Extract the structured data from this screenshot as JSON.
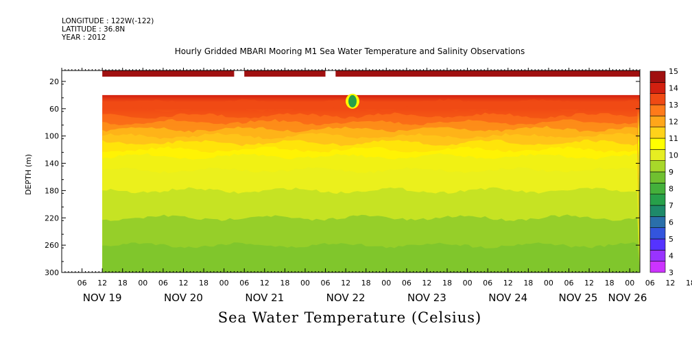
{
  "header": {
    "longitude": "LONGITUDE : 122W(-122)",
    "latitude": "LATITUDE : 36.8N",
    "year": "YEAR : 2012"
  },
  "chart_data": {
    "type": "heatmap",
    "title": "Hourly Gridded MBARI Mooring M1 Sea Water Temperature and Salinity Observations",
    "xlabel": "Sea Water Temperature (Celsius)",
    "ylabel": "DEPTH (m)",
    "y_ticks": [
      20,
      60,
      100,
      140,
      180,
      220,
      260,
      300
    ],
    "ylim": [
      300,
      4
    ],
    "x_hour_labels": [
      "06",
      "12",
      "18",
      "00",
      "06",
      "12",
      "18",
      "00",
      "06",
      "12",
      "18",
      "00",
      "06",
      "12",
      "18",
      "00",
      "06",
      "12",
      "18",
      "00",
      "06",
      "12",
      "18",
      "00",
      "06",
      "12",
      "18",
      "00",
      "06",
      "12",
      "18",
      "00"
    ],
    "x_day_labels": [
      "NOV 19",
      "NOV 20",
      "NOV 21",
      "NOV 22",
      "NOV 23",
      "NOV 24",
      "NOV 25",
      "NOV 26"
    ],
    "xlim": [
      "2012-11-19T00:00",
      "2012-11-26T03:00"
    ],
    "data_start": "2012-11-19T12:00",
    "colorbar": {
      "levels": [
        3,
        4,
        5,
        6,
        7,
        8,
        9,
        10,
        11,
        12,
        13,
        14,
        15
      ],
      "colors": [
        "#cc33ff",
        "#9933ff",
        "#5533ff",
        "#3355dd",
        "#2a6faa",
        "#1e8a6a",
        "#27a04a",
        "#44b03b",
        "#70c030",
        "#a8d82a",
        "#e6ee22",
        "#ffff00",
        "#ffd21a",
        "#ffa61a",
        "#ff7a1a",
        "#f04a14",
        "#d22010",
        "#a01010"
      ]
    },
    "depth_profile": [
      {
        "depth": 40,
        "value": 14.3
      },
      {
        "depth": 50,
        "value": 13.6
      },
      {
        "depth": 60,
        "value": 13.0
      },
      {
        "depth": 70,
        "value": 12.4
      },
      {
        "depth": 80,
        "value": 11.9
      },
      {
        "depth": 90,
        "value": 11.5
      },
      {
        "depth": 100,
        "value": 11.1
      },
      {
        "depth": 110,
        "value": 10.8
      },
      {
        "depth": 120,
        "value": 10.5
      },
      {
        "depth": 130,
        "value": 10.3
      },
      {
        "depth": 150,
        "value": 9.8
      },
      {
        "depth": 180,
        "value": 9.3
      },
      {
        "depth": 220,
        "value": 8.9
      },
      {
        "depth": 260,
        "value": 8.5
      },
      {
        "depth": 300,
        "value": 8.1
      }
    ],
    "surface_value": 14.7,
    "surface_gaps": [
      [
        "2012-11-21T03:00",
        "2012-11-21T06:00"
      ],
      [
        "2012-11-22T06:00",
        "2012-11-22T09:00"
      ]
    ],
    "anomaly": {
      "time": "2012-11-22T14:00",
      "depth_range": [
        40,
        58
      ],
      "value": 7.0
    }
  }
}
